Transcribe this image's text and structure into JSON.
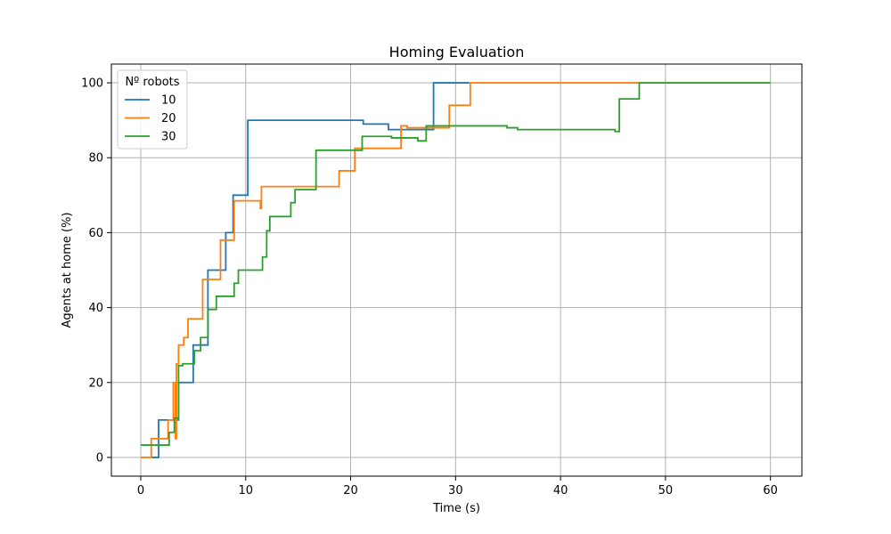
{
  "chart_data": {
    "type": "line",
    "step": true,
    "title": "Homing Evaluation",
    "xlabel": "Time (s)",
    "ylabel": "Agents at home (%)",
    "xlim": [
      -2.8,
      63
    ],
    "ylim": [
      -5,
      105
    ],
    "xticks": [
      0,
      10,
      20,
      30,
      40,
      50,
      60
    ],
    "yticks": [
      0,
      20,
      40,
      60,
      80,
      100
    ],
    "grid": true,
    "legend": {
      "title": "Nº robots",
      "placement": "top-left"
    },
    "series": [
      {
        "name": "10",
        "color": "#1f77b4",
        "points": [
          [
            1.0,
            0
          ],
          [
            1.7,
            0
          ],
          [
            1.7,
            10
          ],
          [
            3.6,
            10
          ],
          [
            3.6,
            20
          ],
          [
            5.0,
            20
          ],
          [
            5.0,
            30
          ],
          [
            6.4,
            30
          ],
          [
            6.4,
            50
          ],
          [
            8.1,
            50
          ],
          [
            8.1,
            60
          ],
          [
            8.8,
            60
          ],
          [
            8.8,
            70
          ],
          [
            10.2,
            70
          ],
          [
            10.2,
            90
          ],
          [
            21.2,
            90
          ],
          [
            21.2,
            89
          ],
          [
            23.6,
            89
          ],
          [
            23.6,
            87.5
          ],
          [
            27.9,
            87.5
          ],
          [
            27.9,
            100
          ],
          [
            31.3,
            100
          ]
        ]
      },
      {
        "name": "20",
        "color": "#ff7f0e",
        "points": [
          [
            0,
            0
          ],
          [
            1.0,
            0
          ],
          [
            1.0,
            5
          ],
          [
            2.6,
            5
          ],
          [
            2.6,
            10
          ],
          [
            3.1,
            10
          ],
          [
            3.1,
            20
          ],
          [
            3.3,
            20
          ],
          [
            3.3,
            5
          ],
          [
            3.4,
            5
          ],
          [
            3.4,
            25
          ],
          [
            3.6,
            25
          ],
          [
            3.6,
            30
          ],
          [
            4.1,
            30
          ],
          [
            4.1,
            32
          ],
          [
            4.5,
            32
          ],
          [
            4.5,
            37
          ],
          [
            5.9,
            37
          ],
          [
            5.9,
            47.5
          ],
          [
            7.6,
            47.5
          ],
          [
            7.6,
            58
          ],
          [
            8.9,
            58
          ],
          [
            8.9,
            68.5
          ],
          [
            11.4,
            68.5
          ],
          [
            11.4,
            66.5
          ],
          [
            11.5,
            66.5
          ],
          [
            11.5,
            72.3
          ],
          [
            18.9,
            72.3
          ],
          [
            18.9,
            76.5
          ],
          [
            20.4,
            76.5
          ],
          [
            20.4,
            82.5
          ],
          [
            24.8,
            82.5
          ],
          [
            24.8,
            88.5
          ],
          [
            25.4,
            88.5
          ],
          [
            25.4,
            88
          ],
          [
            29.4,
            88
          ],
          [
            29.4,
            94
          ],
          [
            31.4,
            94
          ],
          [
            31.4,
            100
          ],
          [
            47.6,
            100
          ]
        ]
      },
      {
        "name": "30",
        "color": "#2ca02c",
        "points": [
          [
            0,
            3.3
          ],
          [
            2.7,
            3.3
          ],
          [
            2.7,
            6.7
          ],
          [
            3.2,
            6.7
          ],
          [
            3.2,
            10.5
          ],
          [
            3.6,
            10.5
          ],
          [
            3.6,
            24.5
          ],
          [
            4.0,
            24.5
          ],
          [
            4.0,
            25
          ],
          [
            5.1,
            25
          ],
          [
            5.1,
            28.5
          ],
          [
            5.7,
            28.5
          ],
          [
            5.7,
            32
          ],
          [
            6.4,
            32
          ],
          [
            6.4,
            39.5
          ],
          [
            7.2,
            39.5
          ],
          [
            7.2,
            43
          ],
          [
            8.9,
            43
          ],
          [
            8.9,
            46.5
          ],
          [
            9.3,
            46.5
          ],
          [
            9.3,
            50
          ],
          [
            11.6,
            50
          ],
          [
            11.6,
            53.5
          ],
          [
            12.0,
            53.5
          ],
          [
            12.0,
            60.5
          ],
          [
            12.3,
            60.5
          ],
          [
            12.3,
            64.3
          ],
          [
            14.3,
            64.3
          ],
          [
            14.3,
            68
          ],
          [
            14.7,
            68
          ],
          [
            14.7,
            71.5
          ],
          [
            16.7,
            71.5
          ],
          [
            16.7,
            82
          ],
          [
            21.1,
            82
          ],
          [
            21.1,
            85.7
          ],
          [
            23.9,
            85.7
          ],
          [
            23.9,
            85.3
          ],
          [
            26.4,
            85.3
          ],
          [
            26.4,
            84.5
          ],
          [
            27.2,
            84.5
          ],
          [
            27.2,
            88.5
          ],
          [
            34.9,
            88.5
          ],
          [
            34.9,
            88
          ],
          [
            35.9,
            88
          ],
          [
            35.9,
            87.5
          ],
          [
            45.2,
            87.5
          ],
          [
            45.2,
            87
          ],
          [
            45.6,
            87
          ],
          [
            45.6,
            95.7
          ],
          [
            47.5,
            95.7
          ],
          [
            47.5,
            100
          ],
          [
            60,
            100
          ]
        ]
      }
    ]
  }
}
